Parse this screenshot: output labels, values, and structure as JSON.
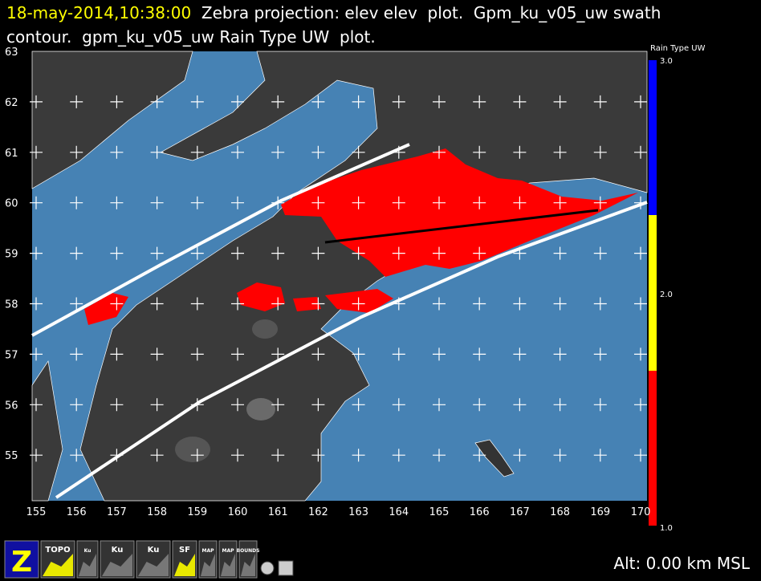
{
  "header": {
    "time": "18-may-2014,10:38:00",
    "line1": "Zebra projection: elev elev  plot.  Gpm_ku_v05_uw swath",
    "line2": "contour.  gpm_ku_v05_uw Rain Type UW  plot."
  },
  "map": {
    "x_labels": [
      "155",
      "156",
      "157",
      "158",
      "159",
      "160",
      "161",
      "162",
      "163",
      "164",
      "165",
      "166",
      "167",
      "168",
      "169",
      "170"
    ],
    "y_labels": [
      "63",
      "62",
      "61",
      "60",
      "59",
      "58",
      "57",
      "56",
      "55"
    ]
  },
  "colorbar": {
    "title": "Rain Type UW",
    "labels": [
      "3.0",
      "2.0",
      "1.0"
    ]
  },
  "toolbar": {
    "icons": [
      "Z",
      "TOPO",
      "Ku",
      "Ku",
      "Ku",
      "SF",
      "MAP",
      "MAP",
      "BOUNDS"
    ]
  },
  "status": "Alt: 0.00 km MSL"
}
